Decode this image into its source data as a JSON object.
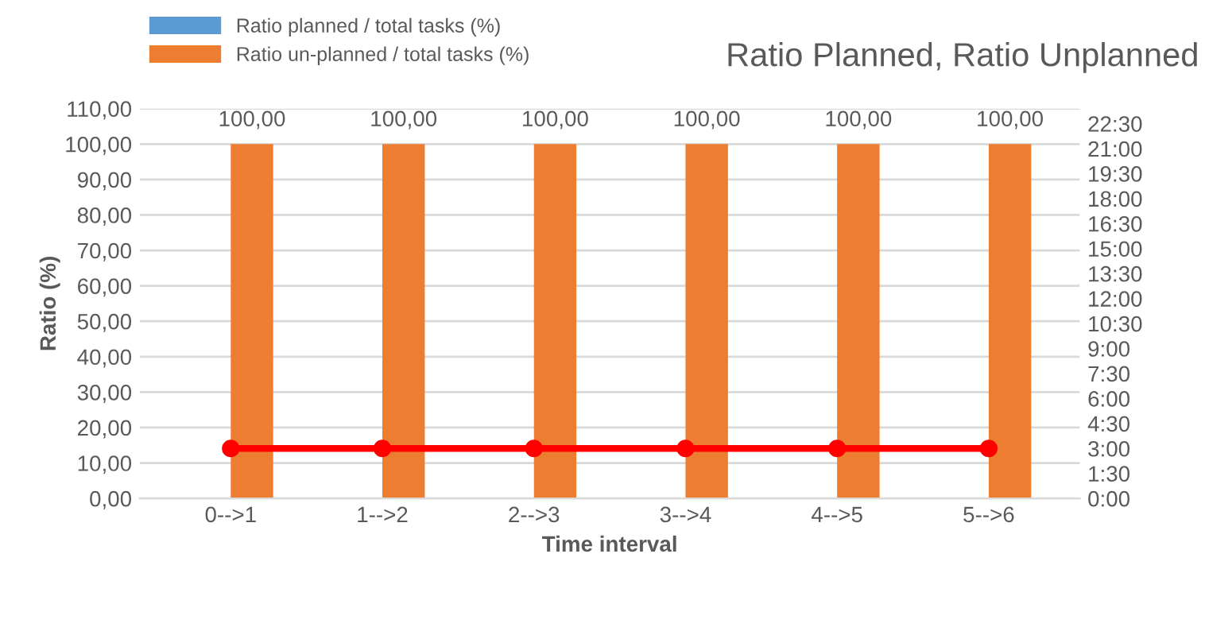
{
  "chart_data": {
    "type": "bar",
    "title": "Ratio Planned, Ratio Unplanned",
    "xlabel": "Time interval",
    "ylabel": "Ratio (%)",
    "categories": [
      "0-->1",
      "1-->2",
      "2-->3",
      "3-->4",
      "4-->5",
      "5-->6"
    ],
    "series": [
      {
        "name": "Ratio planned / total tasks (%)",
        "color": "#5b9bd5",
        "values": [
          0,
          0,
          0,
          0,
          0,
          0
        ]
      },
      {
        "name": "Ratio un-planned / total tasks (%)",
        "color": "#ed7d31",
        "values": [
          100,
          100,
          100,
          100,
          100,
          100
        ],
        "value_labels": [
          "100,00",
          "100,00",
          "100,00",
          "100,00",
          "100,00",
          "100,00"
        ]
      },
      {
        "type": "line",
        "axis": "y2",
        "color": "#ff0000",
        "marker": "circle",
        "values": [
          3,
          3,
          3,
          3,
          3,
          3
        ]
      }
    ],
    "ylim": [
      0,
      110
    ],
    "yticks": [
      {
        "value": 0,
        "label": "0,00"
      },
      {
        "value": 10,
        "label": "10,00"
      },
      {
        "value": 20,
        "label": "20,00"
      },
      {
        "value": 30,
        "label": "30,00"
      },
      {
        "value": 40,
        "label": "40,00"
      },
      {
        "value": 50,
        "label": "50,00"
      },
      {
        "value": 60,
        "label": "60,00"
      },
      {
        "value": 70,
        "label": "70,00"
      },
      {
        "value": 80,
        "label": "80,00"
      },
      {
        "value": 90,
        "label": "90,00"
      },
      {
        "value": 100,
        "label": "100,00"
      },
      {
        "value": 110,
        "label": "110,00"
      }
    ],
    "y2lim": [
      0,
      23.4
    ],
    "y2ticks": [
      {
        "value": 0,
        "label": "0:00"
      },
      {
        "value": 1.5,
        "label": "1:30"
      },
      {
        "value": 3,
        "label": "3:00"
      },
      {
        "value": 4.5,
        "label": "4:30"
      },
      {
        "value": 6,
        "label": "6:00"
      },
      {
        "value": 7.5,
        "label": "7:30"
      },
      {
        "value": 9,
        "label": "9:00"
      },
      {
        "value": 10.5,
        "label": "10:30"
      },
      {
        "value": 12,
        "label": "12:00"
      },
      {
        "value": 13.5,
        "label": "13:30"
      },
      {
        "value": 15,
        "label": "15:00"
      },
      {
        "value": 16.5,
        "label": "16:30"
      },
      {
        "value": 18,
        "label": "18:00"
      },
      {
        "value": 19.5,
        "label": "19:30"
      },
      {
        "value": 21,
        "label": "21:00"
      },
      {
        "value": 22.5,
        "label": "22:30"
      }
    ],
    "grid": "y",
    "legend": "top left"
  }
}
